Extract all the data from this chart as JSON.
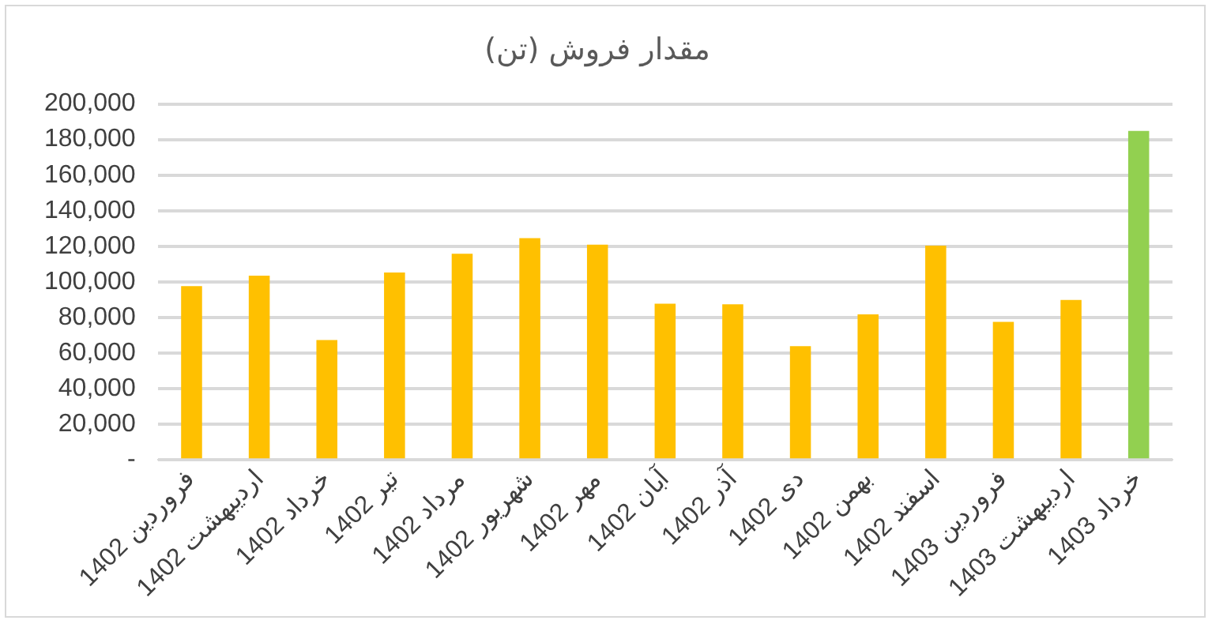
{
  "chart_data": {
    "type": "bar",
    "title": "مقدار فروش (تن)",
    "categories": [
      "فروردین 1402",
      "اردیبهشت 1402",
      "خرداد 1402",
      "تیر 1402",
      "مرداد 1402",
      "شهریور 1402",
      "مهر 1402",
      "آبان 1402",
      "آذر 1402",
      "دی 1402",
      "بهمن 1402",
      "اسفند 1402",
      "فروردین 1403",
      "اردیبهشت 1403",
      "خرداد 1403"
    ],
    "values": [
      97600,
      103500,
      67400,
      105300,
      115800,
      124600,
      121000,
      87800,
      87400,
      63900,
      81800,
      120400,
      77600,
      89900,
      184900
    ],
    "colors": [
      "#ffc000",
      "#ffc000",
      "#ffc000",
      "#ffc000",
      "#ffc000",
      "#ffc000",
      "#ffc000",
      "#ffc000",
      "#ffc000",
      "#ffc000",
      "#ffc000",
      "#ffc000",
      "#ffc000",
      "#ffc000",
      "#92d050"
    ],
    "ylim": [
      0,
      200000
    ],
    "yticks": [
      {
        "value": 0,
        "label": "-"
      },
      {
        "value": 20000,
        "label": "20,000"
      },
      {
        "value": 40000,
        "label": "40,000"
      },
      {
        "value": 60000,
        "label": "60,000"
      },
      {
        "value": 80000,
        "label": "80,000"
      },
      {
        "value": 100000,
        "label": "100,000"
      },
      {
        "value": 120000,
        "label": "120,000"
      },
      {
        "value": 140000,
        "label": "140,000"
      },
      {
        "value": 160000,
        "label": "160,000"
      },
      {
        "value": 180000,
        "label": "180,000"
      },
      {
        "value": 200000,
        "label": "200,000"
      }
    ],
    "grid": "y",
    "legend": false
  }
}
